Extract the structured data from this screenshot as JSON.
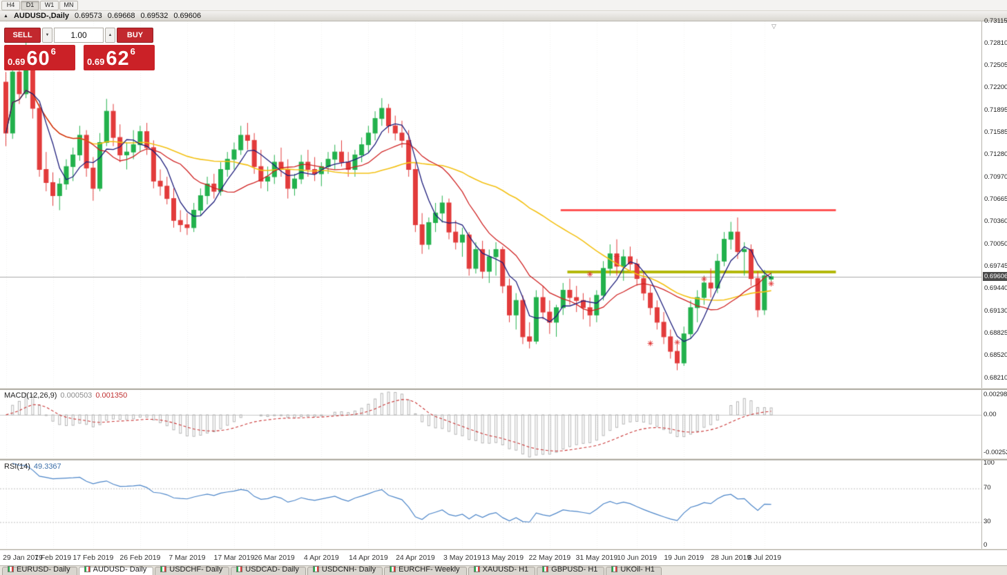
{
  "toolbar": {
    "timeframes": [
      "H4",
      "D1",
      "W1",
      "MN"
    ],
    "active": "D1"
  },
  "header": {
    "symbol_period": "AUDUSD-,Daily",
    "open": "0.69573",
    "high": "0.69668",
    "low": "0.69532",
    "close": "0.69606"
  },
  "icons": {
    "header_triangle": "▲",
    "volume_down": "▼",
    "volume_up": "▲",
    "chart_shift": "▽"
  },
  "trade_panel": {
    "sell_label": "SELL",
    "buy_label": "BUY",
    "volume": "1.00",
    "sell_price": {
      "prefix": "0.69",
      "big": "60",
      "sup": "6"
    },
    "buy_price": {
      "prefix": "0.69",
      "big": "62",
      "sup": "6"
    },
    "button_color": "#c2282e",
    "box_color": "#cb2127"
  },
  "price_axis": {
    "max": 0.73115,
    "min": 0.6821,
    "labels": [
      "0.73115",
      "0.72810",
      "0.72505",
      "0.72200",
      "0.71895",
      "0.71585",
      "0.71280",
      "0.70970",
      "0.70665",
      "0.70360",
      "0.70050",
      "0.69745",
      "0.69440",
      "0.69130",
      "0.68825",
      "0.68520",
      "0.68210"
    ],
    "bid_tag": "0.69606"
  },
  "date_axis": {
    "ticks": [
      {
        "label": "29 Jan 2019",
        "i": 0
      },
      {
        "label": "7 Feb 2019",
        "i": 7
      },
      {
        "label": "17 Feb 2019",
        "i": 13
      },
      {
        "label": "26 Feb 2019",
        "i": 20
      },
      {
        "label": "7 Mar 2019",
        "i": 27
      },
      {
        "label": "17 Mar 2019",
        "i": 34
      },
      {
        "label": "26 Mar 2019",
        "i": 40
      },
      {
        "label": "4 Apr 2019",
        "i": 47
      },
      {
        "label": "14 Apr 2019",
        "i": 54
      },
      {
        "label": "24 Apr 2019",
        "i": 61
      },
      {
        "label": "3 May 2019",
        "i": 68
      },
      {
        "label": "13 May 2019",
        "i": 74
      },
      {
        "label": "22 May 2019",
        "i": 81
      },
      {
        "label": "31 May 2019",
        "i": 88
      },
      {
        "label": "10 Jun 2019",
        "i": 94
      },
      {
        "label": "19 Jun 2019",
        "i": 101
      },
      {
        "label": "28 Jun 2019",
        "i": 108
      },
      {
        "label": "8 Jul 2019",
        "i": 113
      }
    ]
  },
  "macd": {
    "label": "MACD(12,26,9)",
    "value_main": "0.000503",
    "value_signal": "0.001350",
    "params": {
      "fast": 12,
      "slow": 26,
      "signal": 9
    },
    "axis": {
      "top": "0.002984",
      "zero": "0.00",
      "bottom": "-0.00252"
    }
  },
  "rsi": {
    "label": "RSI(14)",
    "value": "49.3367",
    "period": 14,
    "levels": [
      70,
      30
    ],
    "axis_labels": [
      "100",
      "70",
      "30",
      "0"
    ]
  },
  "tabs": {
    "items": [
      {
        "label": "EURUSD- Daily",
        "active": false
      },
      {
        "label": "AUDUSD- Daily",
        "active": true
      },
      {
        "label": "USDCHF- Daily",
        "active": false
      },
      {
        "label": "USDCAD- Daily",
        "active": false
      },
      {
        "label": "USDCNH- Daily",
        "active": false
      },
      {
        "label": "EURCHF- Weekly",
        "active": false
      },
      {
        "label": "XAUUSD- H1",
        "active": false
      },
      {
        "label": "GBPUSD- H1",
        "active": false
      },
      {
        "label": "UKOil- H1",
        "active": false
      }
    ]
  },
  "chart_data": {
    "type": "candlestick",
    "symbol": "AUDUSD",
    "timeframe": "Daily",
    "up_color": "#22b14c",
    "down_color": "#e23b3b",
    "overlays": {
      "sma_fast": {
        "period": 5,
        "color": "#1b1b7a"
      },
      "sma_mid": {
        "period": 13,
        "color": "#cf2020"
      },
      "sma_slow": {
        "period": 34,
        "color": "#f3c012"
      },
      "resistance_line": {
        "price": 0.7052,
        "from_i": 83,
        "to_i": 124,
        "color": "#ff5353",
        "width": 3
      },
      "support_line": {
        "price": 0.6967,
        "from_i": 84,
        "to_i": 124,
        "color": "#b3b80a",
        "width": 4
      },
      "bid_line": {
        "price": 0.69606,
        "color": "#a8a8a8"
      }
    },
    "markers": [
      {
        "i": 87,
        "p": 0.6964
      },
      {
        "i": 91,
        "p": 0.69885
      },
      {
        "i": 96,
        "p": 0.6869
      },
      {
        "i": 100,
        "p": 0.68703
      },
      {
        "i": 104,
        "p": 0.69575
      },
      {
        "i": 114,
        "p": 0.6951
      }
    ],
    "candles": [
      [
        0.7228,
        0.7242,
        0.714,
        0.7158
      ],
      [
        0.7158,
        0.7252,
        0.715,
        0.7242
      ],
      [
        0.7242,
        0.7262,
        0.7198,
        0.7212
      ],
      [
        0.7212,
        0.7295,
        0.7206,
        0.7255
      ],
      [
        0.7255,
        0.7272,
        0.7178,
        0.7192
      ],
      [
        0.7192,
        0.7198,
        0.7098,
        0.7108
      ],
      [
        0.7108,
        0.7132,
        0.7078,
        0.709
      ],
      [
        0.709,
        0.7104,
        0.7058,
        0.7072
      ],
      [
        0.7072,
        0.7096,
        0.7052,
        0.7088
      ],
      [
        0.7088,
        0.7122,
        0.708,
        0.7112
      ],
      [
        0.7112,
        0.7138,
        0.7092,
        0.7128
      ],
      [
        0.7128,
        0.7168,
        0.712,
        0.7155
      ],
      [
        0.7155,
        0.7162,
        0.7098,
        0.711
      ],
      [
        0.711,
        0.7125,
        0.7065,
        0.7082
      ],
      [
        0.7082,
        0.7158,
        0.7078,
        0.7145
      ],
      [
        0.7145,
        0.7205,
        0.714,
        0.7188
      ],
      [
        0.7188,
        0.7198,
        0.714,
        0.7152
      ],
      [
        0.7152,
        0.717,
        0.7118,
        0.7128
      ],
      [
        0.7128,
        0.7145,
        0.7108,
        0.7132
      ],
      [
        0.7132,
        0.7162,
        0.7122,
        0.7142
      ],
      [
        0.7142,
        0.7168,
        0.7132,
        0.716
      ],
      [
        0.716,
        0.7172,
        0.7128,
        0.7138
      ],
      [
        0.7138,
        0.7148,
        0.7082,
        0.7092
      ],
      [
        0.7092,
        0.7108,
        0.7072,
        0.7085
      ],
      [
        0.7085,
        0.7098,
        0.706,
        0.7068
      ],
      [
        0.7068,
        0.7082,
        0.7028,
        0.7038
      ],
      [
        0.7038,
        0.7052,
        0.7022,
        0.7032
      ],
      [
        0.7032,
        0.7048,
        0.7018,
        0.7028
      ],
      [
        0.7028,
        0.7062,
        0.7022,
        0.7052
      ],
      [
        0.7052,
        0.7082,
        0.7045,
        0.7072
      ],
      [
        0.7072,
        0.7098,
        0.706,
        0.7088
      ],
      [
        0.7088,
        0.7102,
        0.7068,
        0.7078
      ],
      [
        0.7078,
        0.7118,
        0.7072,
        0.7108
      ],
      [
        0.7108,
        0.7132,
        0.7098,
        0.7122
      ],
      [
        0.7122,
        0.7145,
        0.7108,
        0.7135
      ],
      [
        0.7135,
        0.7168,
        0.7128,
        0.7155
      ],
      [
        0.7155,
        0.7172,
        0.7135,
        0.7148
      ],
      [
        0.7148,
        0.7158,
        0.7102,
        0.7112
      ],
      [
        0.7112,
        0.7135,
        0.7082,
        0.7092
      ],
      [
        0.7092,
        0.7112,
        0.7078,
        0.7098
      ],
      [
        0.7098,
        0.7128,
        0.7088,
        0.7118
      ],
      [
        0.7118,
        0.7138,
        0.7098,
        0.7108
      ],
      [
        0.7108,
        0.7122,
        0.7068,
        0.7082
      ],
      [
        0.7082,
        0.7102,
        0.7072,
        0.7095
      ],
      [
        0.7095,
        0.7128,
        0.7088,
        0.7118
      ],
      [
        0.7118,
        0.7135,
        0.7098,
        0.7108
      ],
      [
        0.7108,
        0.7125,
        0.7092,
        0.7102
      ],
      [
        0.7102,
        0.7118,
        0.7085,
        0.7112
      ],
      [
        0.7112,
        0.7132,
        0.7102,
        0.7122
      ],
      [
        0.7122,
        0.7142,
        0.7108,
        0.7132
      ],
      [
        0.7132,
        0.7148,
        0.7112,
        0.7118
      ],
      [
        0.7118,
        0.7132,
        0.7098,
        0.7108
      ],
      [
        0.7108,
        0.7135,
        0.7098,
        0.7128
      ],
      [
        0.7128,
        0.7152,
        0.7118,
        0.7142
      ],
      [
        0.7142,
        0.7168,
        0.7132,
        0.7158
      ],
      [
        0.7158,
        0.7188,
        0.7148,
        0.7178
      ],
      [
        0.7178,
        0.7206,
        0.7168,
        0.7192
      ],
      [
        0.7192,
        0.7198,
        0.7158,
        0.7168
      ],
      [
        0.7168,
        0.7182,
        0.7148,
        0.7158
      ],
      [
        0.7158,
        0.7175,
        0.7138,
        0.7148
      ],
      [
        0.7148,
        0.7162,
        0.7098,
        0.7108
      ],
      [
        0.7108,
        0.7118,
        0.7022,
        0.7032
      ],
      [
        0.7032,
        0.7048,
        0.6992,
        0.7005
      ],
      [
        0.7005,
        0.7042,
        0.6998,
        0.7035
      ],
      [
        0.7035,
        0.7062,
        0.7022,
        0.7048
      ],
      [
        0.7048,
        0.7072,
        0.7035,
        0.7062
      ],
      [
        0.7062,
        0.7068,
        0.7012,
        0.7022
      ],
      [
        0.7022,
        0.7038,
        0.6998,
        0.7008
      ],
      [
        0.7008,
        0.7028,
        0.6988,
        0.7018
      ],
      [
        0.7018,
        0.7022,
        0.6962,
        0.6972
      ],
      [
        0.6972,
        0.7008,
        0.6965,
        0.6998
      ],
      [
        0.6998,
        0.701,
        0.6958,
        0.6968
      ],
      [
        0.6968,
        0.6998,
        0.6952,
        0.6988
      ],
      [
        0.6988,
        0.7008,
        0.6962,
        0.6998
      ],
      [
        0.6998,
        0.7002,
        0.6938,
        0.6948
      ],
      [
        0.6948,
        0.6958,
        0.6898,
        0.6908
      ],
      [
        0.6908,
        0.6938,
        0.6888,
        0.6928
      ],
      [
        0.6928,
        0.6935,
        0.6868,
        0.6878
      ],
      [
        0.6878,
        0.6898,
        0.6862,
        0.6872
      ],
      [
        0.6872,
        0.6942,
        0.6868,
        0.6932
      ],
      [
        0.6932,
        0.6948,
        0.6902,
        0.6912
      ],
      [
        0.6912,
        0.6928,
        0.6882,
        0.6898
      ],
      [
        0.6898,
        0.6922,
        0.6878,
        0.6918
      ],
      [
        0.6918,
        0.6952,
        0.6908,
        0.6942
      ],
      [
        0.6942,
        0.6958,
        0.6922,
        0.6932
      ],
      [
        0.6932,
        0.6948,
        0.6912,
        0.6928
      ],
      [
        0.6928,
        0.6938,
        0.6902,
        0.6918
      ],
      [
        0.6918,
        0.6932,
        0.6892,
        0.6908
      ],
      [
        0.6908,
        0.6942,
        0.6898,
        0.6935
      ],
      [
        0.6935,
        0.6982,
        0.6928,
        0.6972
      ],
      [
        0.6972,
        0.7005,
        0.6962,
        0.6992
      ],
      [
        0.6992,
        0.7012,
        0.6962,
        0.6975
      ],
      [
        0.6975,
        0.6998,
        0.6955,
        0.6988
      ],
      [
        0.6988,
        0.7002,
        0.6968,
        0.6978
      ],
      [
        0.6978,
        0.6985,
        0.6948,
        0.6958
      ],
      [
        0.6958,
        0.6968,
        0.6928,
        0.6938
      ],
      [
        0.6938,
        0.6948,
        0.6908,
        0.6918
      ],
      [
        0.6918,
        0.6928,
        0.6888,
        0.6898
      ],
      [
        0.6898,
        0.6912,
        0.6868,
        0.6878
      ],
      [
        0.6878,
        0.6888,
        0.6848,
        0.6858
      ],
      [
        0.6858,
        0.6872,
        0.6832,
        0.6842
      ],
      [
        0.6842,
        0.6892,
        0.6838,
        0.6882
      ],
      [
        0.6882,
        0.6928,
        0.6875,
        0.6918
      ],
      [
        0.6918,
        0.6942,
        0.6898,
        0.6932
      ],
      [
        0.6932,
        0.6962,
        0.6922,
        0.6952
      ],
      [
        0.6952,
        0.6972,
        0.6932,
        0.6945
      ],
      [
        0.6945,
        0.6992,
        0.6938,
        0.6982
      ],
      [
        0.6982,
        0.7022,
        0.6975,
        0.7012
      ],
      [
        0.7012,
        0.7036,
        0.6998,
        0.7022
      ],
      [
        0.7022,
        0.7042,
        0.6985,
        0.6995
      ],
      [
        0.6995,
        0.7008,
        0.6962,
        0.6998
      ],
      [
        0.6998,
        0.7005,
        0.6948,
        0.6958
      ],
      [
        0.6958,
        0.6968,
        0.6905,
        0.6915
      ],
      [
        0.6915,
        0.697,
        0.6908,
        0.6962
      ],
      [
        0.69573,
        0.69668,
        0.69532,
        0.69606
      ]
    ]
  }
}
